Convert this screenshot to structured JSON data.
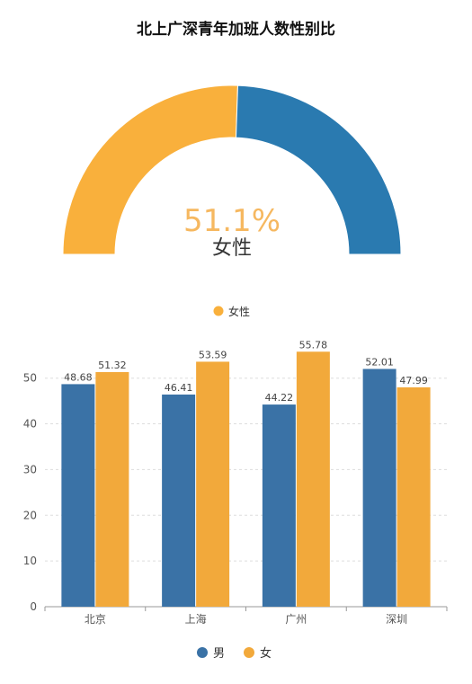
{
  "title": "北上广深青年加班人数性别比",
  "colors": {
    "male": "#3a72a6",
    "female": "#f2a93b",
    "gauge_male": "#2a7ab0",
    "gauge_female": "#f9b03c",
    "percent_text": "#f6b860",
    "axis": "#999999",
    "grid": "#dddddd"
  },
  "chart_data": [
    {
      "type": "pie",
      "subtype": "half-donut",
      "slices": [
        {
          "name": "女性",
          "value": 51.1
        },
        {
          "name": "",
          "value": 48.9
        }
      ],
      "center_value": "51.1%",
      "center_label": "女性",
      "legend": [
        "女性"
      ],
      "legend_position": "bottom"
    },
    {
      "type": "bar",
      "categories": [
        "北京",
        "上海",
        "广州",
        "深圳"
      ],
      "series": [
        {
          "name": "男",
          "values": [
            48.68,
            46.41,
            44.22,
            52.01
          ]
        },
        {
          "name": "女",
          "values": [
            51.32,
            53.59,
            55.78,
            47.99
          ]
        }
      ],
      "value_labels": [
        [
          "48.68",
          "46.41",
          "44.22",
          "52.01"
        ],
        [
          "51.32",
          "53.59",
          "55.78",
          "47.99"
        ]
      ],
      "y_ticks": [
        "0",
        "10",
        "20",
        "30",
        "40",
        "50"
      ],
      "ylim": [
        0,
        58
      ],
      "grid": true,
      "legend_position": "bottom"
    }
  ]
}
